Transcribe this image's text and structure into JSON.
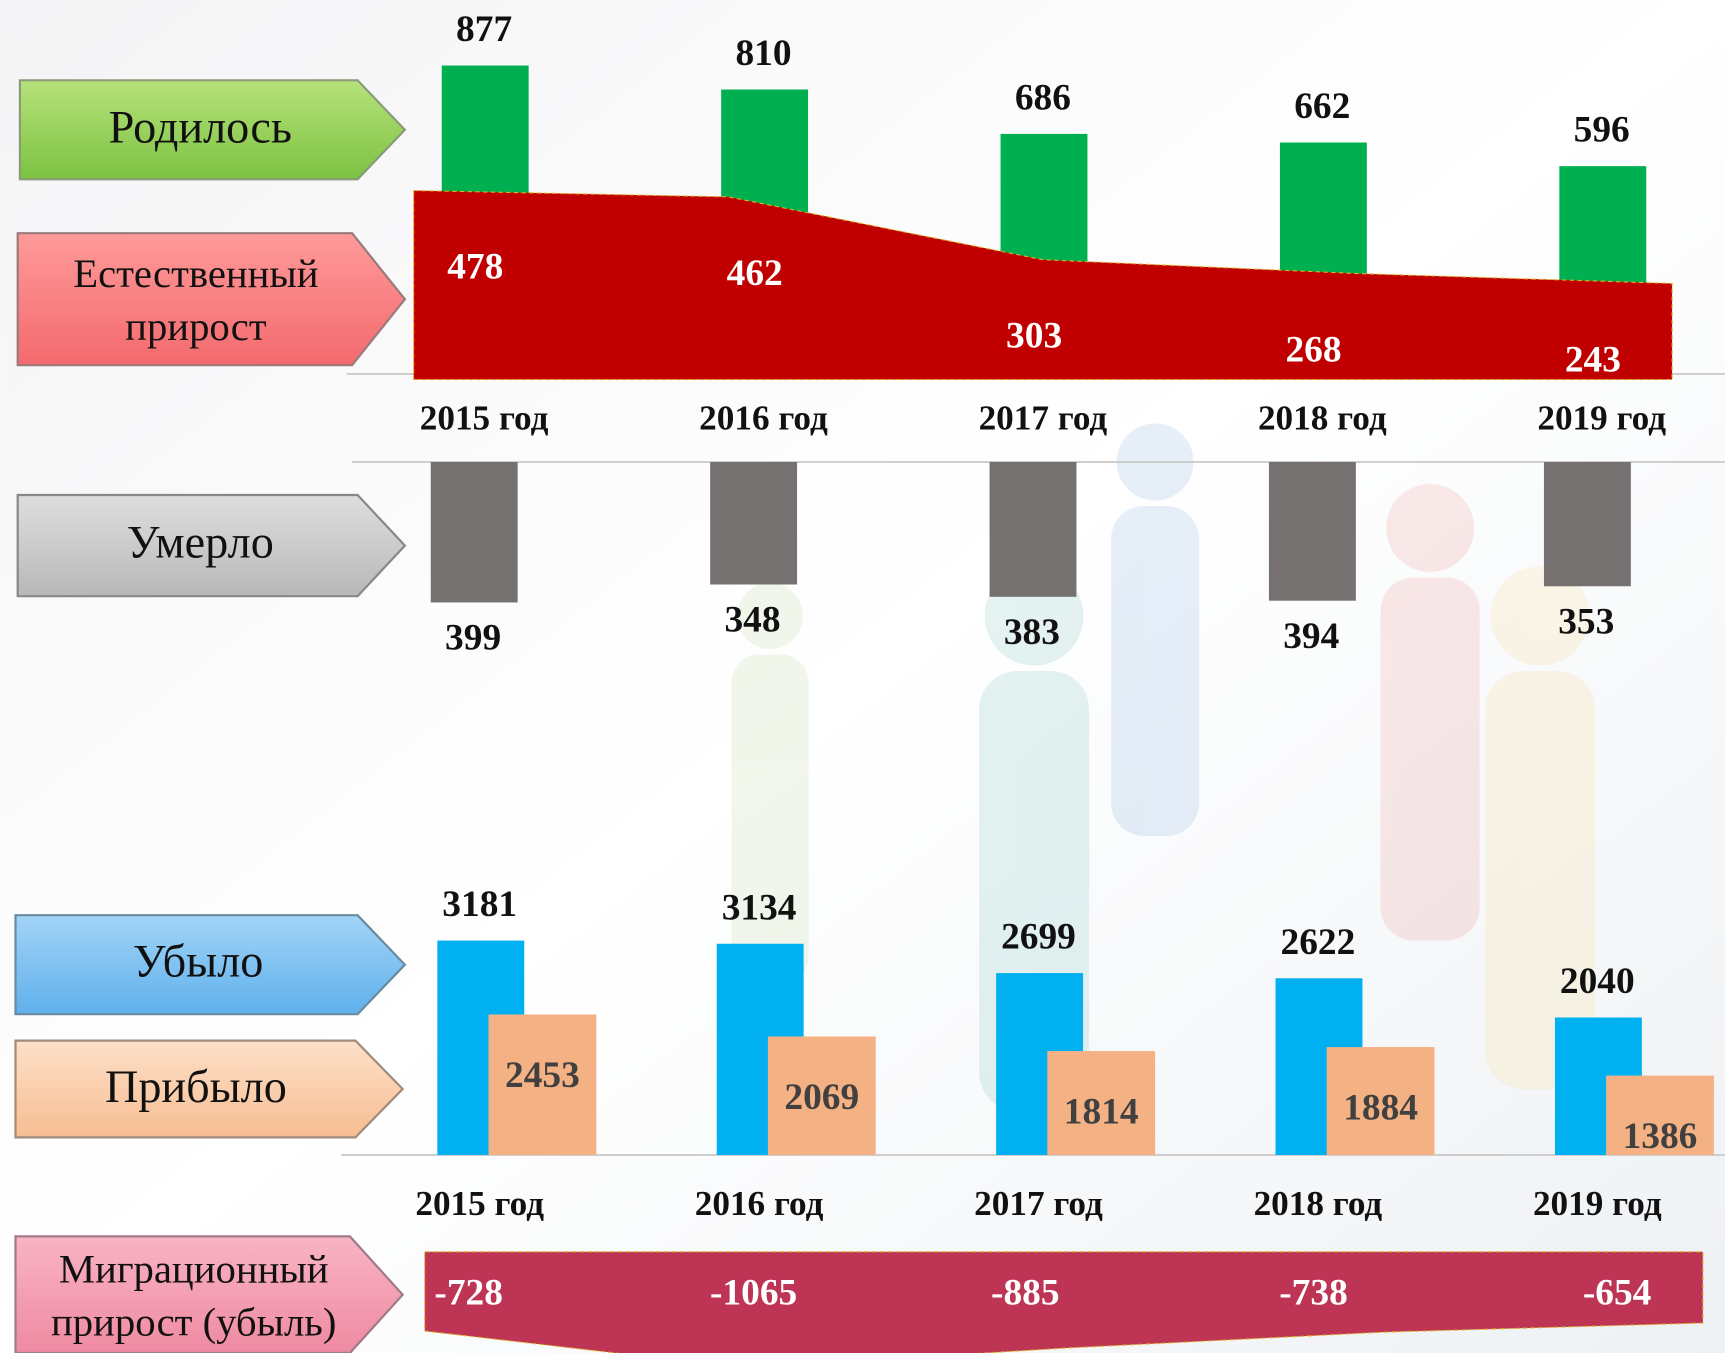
{
  "chart_data": [
    {
      "type": "bar",
      "categories": [
        "2015 год",
        "2016 год",
        "2017 год",
        "2018 год",
        "2019 год"
      ],
      "series": [
        {
          "name": "Родилось",
          "color": "#00b050",
          "values": [
            877,
            810,
            686,
            662,
            596
          ]
        },
        {
          "name": "Естественный прирост",
          "color": "#c00000",
          "type": "area",
          "axis": "y2",
          "values": [
            478,
            462,
            303,
            268,
            243
          ]
        }
      ],
      "ylim": [
        0,
        1060
      ],
      "y2lim": [
        0,
        960
      ]
    },
    {
      "type": "bar",
      "y_inverted": true,
      "series": [
        {
          "name": "Умерло",
          "color": "#767171",
          "values": [
            399,
            348,
            383,
            394,
            353
          ]
        }
      ],
      "ylim": [
        0,
        1000
      ]
    },
    {
      "type": "bar",
      "categories": [
        "2015 год",
        "2016 год",
        "2017 год",
        "2018 год",
        "2019 год"
      ],
      "series": [
        {
          "name": "Убыло",
          "color": "#00b0f0",
          "values": [
            3181,
            3134,
            2699,
            2622,
            2040
          ]
        },
        {
          "name": "Прибыло",
          "color": "#f4b183",
          "axis": "y2",
          "values": [
            2453,
            2069,
            1814,
            1884,
            1386
          ]
        }
      ],
      "ylim": [
        0,
        4080
      ],
      "y2lim": [
        0,
        4800
      ]
    },
    {
      "type": "area",
      "series": [
        {
          "name": "Миграционный прирост (убыль)",
          "color": "#be3455",
          "values": [
            -728,
            -1065,
            -885,
            -738,
            -654
          ]
        }
      ],
      "ylim": [
        -1000,
        0
      ]
    }
  ]
}
